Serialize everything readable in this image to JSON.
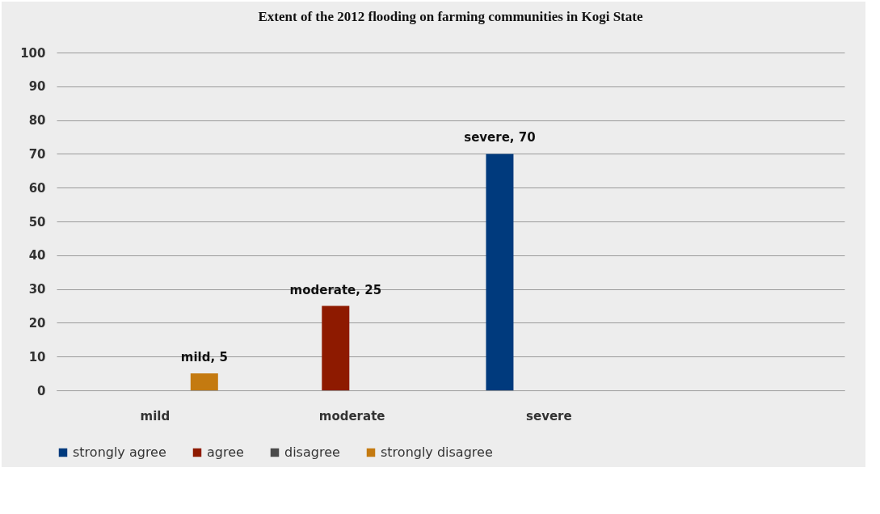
{
  "chart_data": {
    "type": "bar",
    "title": "Extent of the 2012 flooding on farming communities in Kogi State",
    "categories": [
      "mild",
      "moderate",
      "severe",
      null
    ],
    "series": [
      {
        "name": "strongly agree",
        "color": "#003a7d",
        "values": [
          null,
          null,
          70,
          null
        ],
        "value_labels": [
          null,
          null,
          "severe, 70",
          null
        ]
      },
      {
        "name": "agree",
        "color": "#8e1a00",
        "values": [
          null,
          25,
          null,
          null
        ],
        "value_labels": [
          null,
          "moderate, 25",
          null,
          null
        ]
      },
      {
        "name": "disagree",
        "color": "#4a4a4a",
        "values": [
          null,
          null,
          null,
          null
        ]
      },
      {
        "name": "strongly disagree",
        "color": "#c47a10",
        "values": [
          5,
          null,
          null,
          null
        ],
        "value_labels": [
          "mild, 5",
          null,
          null,
          null
        ]
      }
    ],
    "ylim": [
      0,
      100
    ],
    "yticks": [
      0,
      10,
      20,
      30,
      40,
      50,
      60,
      70,
      80,
      90,
      100
    ],
    "grid": "y",
    "legend": "bottom"
  }
}
